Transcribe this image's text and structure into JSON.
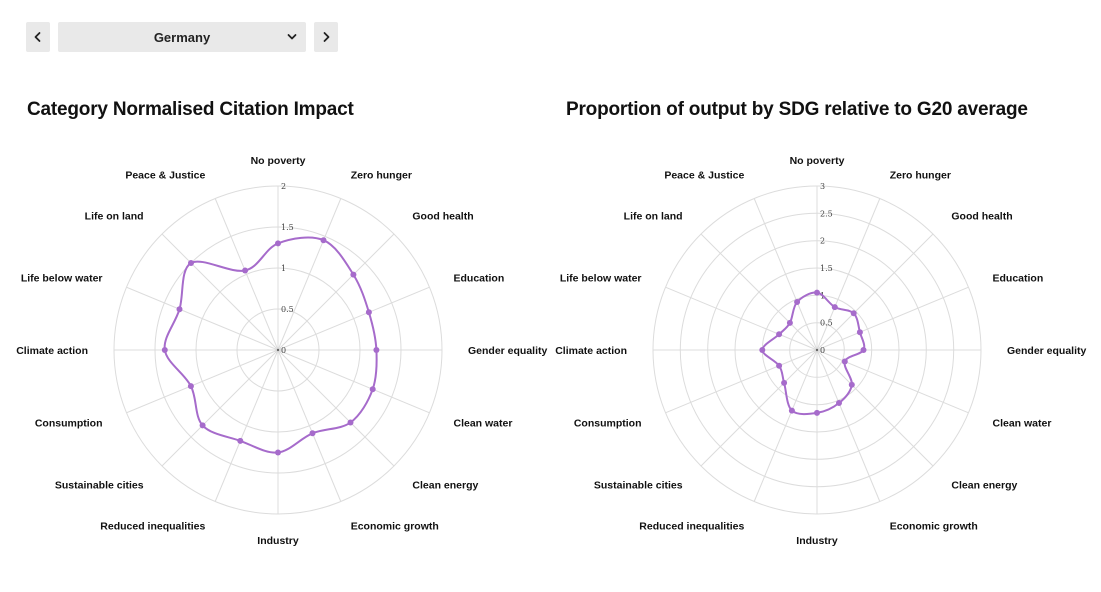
{
  "controls": {
    "selected_country": "Germany",
    "prev_icon": "chevron-left-icon",
    "next_icon": "chevron-right-icon",
    "dropdown_icon": "chevron-down-icon"
  },
  "colors": {
    "series": "#a66bcb",
    "grid": "#dcdcdc",
    "button_bg": "#e9e9e9"
  },
  "chart_data": [
    {
      "type": "radar",
      "title": "Category Normalised Citation Impact",
      "categories": [
        "No poverty",
        "Zero hunger",
        "Good health",
        "Education",
        "Gender equality",
        "Clean water",
        "Clean energy",
        "Economic growth",
        "Industry",
        "Reduced inequalities",
        "Sustainable cities",
        "Consumption",
        "Climate action",
        "Life below water",
        "Life on land",
        "Peace & Justice"
      ],
      "ticks": [
        "0",
        "0.5",
        "1",
        "1.5",
        "2"
      ],
      "rmax": 2,
      "grid": true,
      "series": [
        {
          "values": [
            1.3,
            1.45,
            1.3,
            1.2,
            1.2,
            1.25,
            1.25,
            1.1,
            1.25,
            1.2,
            1.3,
            1.15,
            1.38,
            1.3,
            1.5,
            1.05
          ]
        }
      ]
    },
    {
      "type": "radar",
      "title": "Proportion of output by SDG relative to G20 average",
      "categories": [
        "No poverty",
        "Zero hunger",
        "Good health",
        "Education",
        "Gender equality",
        "Clean water",
        "Clean energy",
        "Economic growth",
        "Industry",
        "Reduced inequalities",
        "Sustainable cities",
        "Consumption",
        "Climate action",
        "Life below water",
        "Life on land",
        "Peace & Justice"
      ],
      "ticks": [
        "0",
        "0.5",
        "1",
        "1.5",
        "2",
        "2.5",
        "3"
      ],
      "rmax": 3,
      "grid": true,
      "series": [
        {
          "values": [
            1.05,
            0.85,
            0.95,
            0.85,
            0.85,
            0.55,
            0.9,
            1.05,
            1.15,
            1.2,
            0.85,
            0.75,
            1.0,
            0.75,
            0.7,
            0.95
          ]
        }
      ]
    }
  ]
}
